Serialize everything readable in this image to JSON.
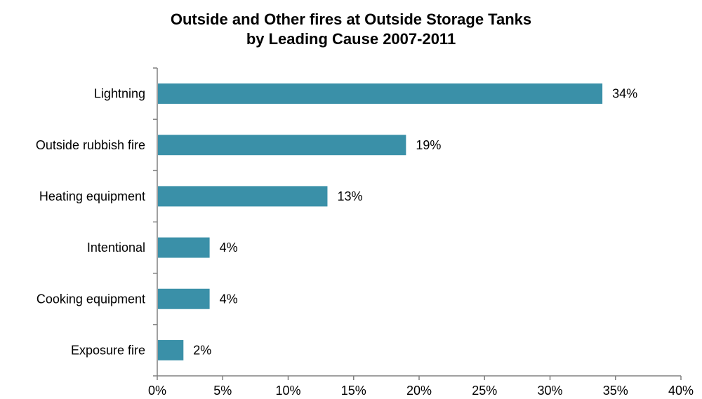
{
  "chart_data": {
    "type": "bar",
    "orientation": "horizontal",
    "title_lines": [
      "Outside and Other fires at Outside Storage Tanks",
      "by Leading Cause 2007-2011"
    ],
    "categories": [
      "Lightning",
      "Outside rubbish fire",
      "Heating equipment",
      "Intentional",
      "Cooking equipment",
      "Exposure fire"
    ],
    "values": [
      34,
      19,
      13,
      4,
      4,
      2
    ],
    "data_labels": [
      "34%",
      "19%",
      "13%",
      "4%",
      "4%",
      "2%"
    ],
    "xlim": [
      0,
      40
    ],
    "x_ticks": [
      0,
      5,
      10,
      15,
      20,
      25,
      30,
      35,
      40
    ],
    "x_tick_labels": [
      "0%",
      "5%",
      "10%",
      "15%",
      "20%",
      "25%",
      "30%",
      "35%",
      "40%"
    ],
    "grid": false,
    "legend": "none",
    "colors": {
      "bar": "#3A90A8",
      "axis": "#808080"
    }
  }
}
